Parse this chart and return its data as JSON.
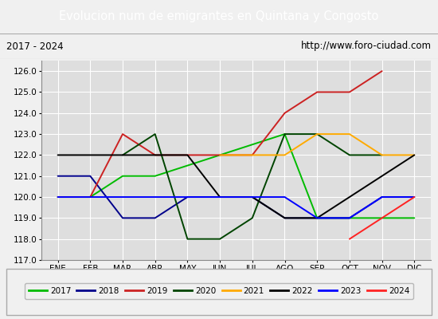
{
  "title": "Evolucion num de emigrantes en Quintana y Congosto",
  "subtitle_left": "2017 - 2024",
  "subtitle_right": "http://www.foro-ciudad.com",
  "months": [
    "ENE",
    "FEB",
    "MAR",
    "ABR",
    "MAY",
    "JUN",
    "JUL",
    "AGO",
    "SEP",
    "OCT",
    "NOV",
    "DIC"
  ],
  "ylim": [
    117.0,
    126.5
  ],
  "yticks": [
    117.0,
    118.0,
    119.0,
    120.0,
    121.0,
    122.0,
    123.0,
    124.0,
    125.0,
    126.0
  ],
  "series": {
    "2017": {
      "color": "#00bb00",
      "data": [
        120.0,
        120.0,
        121.0,
        121.0,
        null,
        null,
        null,
        123.0,
        119.0,
        119.0,
        119.0,
        119.0
      ]
    },
    "2018": {
      "color": "#00008b",
      "data": [
        121.0,
        121.0,
        119.0,
        119.0,
        120.0,
        120.0,
        120.0,
        119.0,
        119.0,
        119.0,
        120.0,
        120.0
      ]
    },
    "2019": {
      "color": "#cc2222",
      "data": [
        120.0,
        120.0,
        123.0,
        122.0,
        122.0,
        122.0,
        122.0,
        124.0,
        125.0,
        125.0,
        126.0,
        null
      ]
    },
    "2020": {
      "color": "#004400",
      "data": [
        null,
        null,
        122.0,
        123.0,
        118.0,
        118.0,
        119.0,
        123.0,
        123.0,
        122.0,
        122.0,
        null
      ]
    },
    "2021": {
      "color": "#ffaa00",
      "data": [
        null,
        null,
        null,
        null,
        null,
        122.0,
        122.0,
        122.0,
        123.0,
        123.0,
        122.0,
        122.0
      ]
    },
    "2022": {
      "color": "#000000",
      "data": [
        122.0,
        122.0,
        122.0,
        122.0,
        122.0,
        120.0,
        120.0,
        119.0,
        119.0,
        120.0,
        121.0,
        122.0
      ]
    },
    "2023": {
      "color": "#0000ff",
      "data": [
        120.0,
        120.0,
        120.0,
        120.0,
        120.0,
        120.0,
        120.0,
        120.0,
        119.0,
        119.0,
        120.0,
        120.0
      ]
    },
    "2024": {
      "color": "#ff2222",
      "data": [
        null,
        null,
        null,
        null,
        null,
        null,
        null,
        null,
        null,
        118.0,
        119.0,
        120.0
      ]
    }
  },
  "series_order": [
    "2017",
    "2018",
    "2019",
    "2020",
    "2021",
    "2022",
    "2023",
    "2024"
  ],
  "title_bg_color": "#4472c4",
  "title_font_color": "#ffffff",
  "subtitle_bg_color": "#dddddd",
  "plot_bg_color": "#dedede",
  "grid_color": "#ffffff",
  "legend_bg_color": "#f0f0f0",
  "fig_bg_color": "#f0f0f0"
}
